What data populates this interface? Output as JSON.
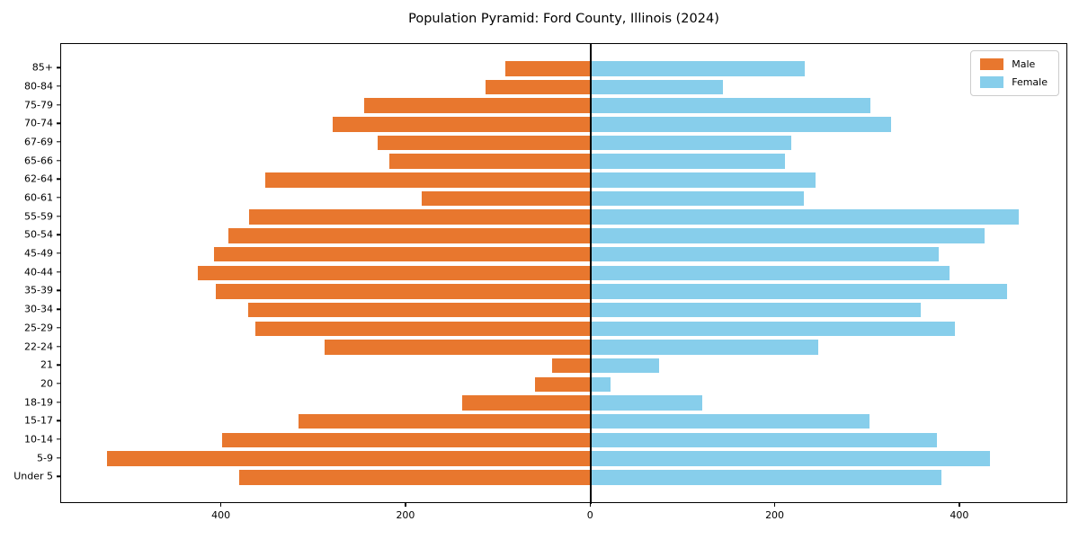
{
  "title": "Population Pyramid: Ford County, Illinois (2024)",
  "legend": {
    "male_label": "Male",
    "female_label": "Female",
    "position": "upper right"
  },
  "colors": {
    "male": "#e8772e",
    "female": "#87ceeb",
    "axis": "#000000",
    "background": "#ffffff"
  },
  "chart_data": {
    "type": "bar",
    "subtype": "population-pyramid",
    "orientation": "horizontal",
    "title": "Population Pyramid: Ford County, Illinois (2024)",
    "xlabel": "",
    "ylabel": "",
    "grid": false,
    "legend_position": "upper right",
    "xlim": [
      -574,
      517
    ],
    "x_ticks": [
      {
        "value": -400,
        "label": "400"
      },
      {
        "value": -200,
        "label": "200"
      },
      {
        "value": 0,
        "label": "0"
      },
      {
        "value": 200,
        "label": "200"
      },
      {
        "value": 400,
        "label": "400"
      }
    ],
    "categories_bottom_to_top": [
      "Under 5",
      "5-9",
      "10-14",
      "15-17",
      "18-19",
      "20",
      "21",
      "22-24",
      "25-29",
      "30-34",
      "35-39",
      "40-44",
      "45-49",
      "50-54",
      "55-59",
      "60-61",
      "62-64",
      "65-66",
      "67-69",
      "70-74",
      "75-79",
      "80-84",
      "85+"
    ],
    "series": [
      {
        "name": "Male",
        "side": "left",
        "color": "#e8772e",
        "values": [
          381,
          524,
          400,
          317,
          140,
          61,
          42,
          289,
          364,
          371,
          406,
          426,
          408,
          393,
          370,
          183,
          353,
          218,
          231,
          280,
          246,
          114,
          93
        ]
      },
      {
        "name": "Female",
        "side": "right",
        "color": "#87ceeb",
        "values": [
          380,
          432,
          375,
          302,
          121,
          21,
          74,
          246,
          394,
          357,
          451,
          388,
          377,
          426,
          463,
          231,
          243,
          210,
          217,
          325,
          303,
          143,
          232
        ]
      }
    ]
  }
}
